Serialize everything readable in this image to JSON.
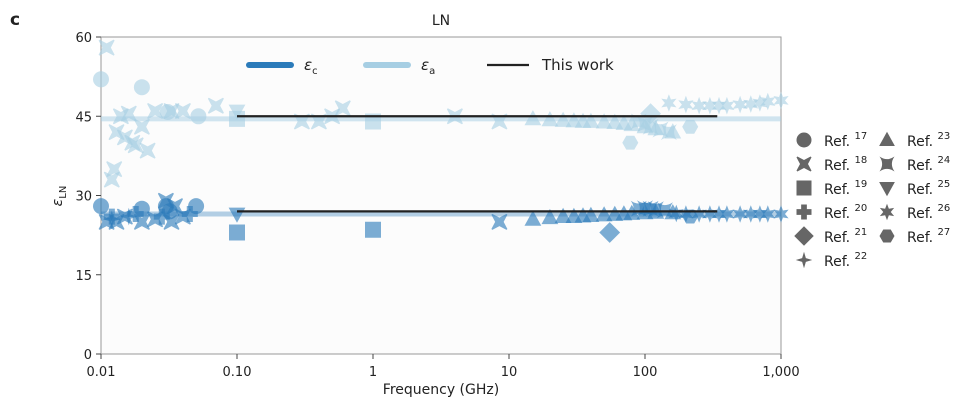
{
  "panel_label": "c",
  "chart_data": {
    "type": "scatter",
    "title": "LN",
    "xlabel": "Frequency (GHz)",
    "ylabel": "ε",
    "ylabel_sub": "LN",
    "xscale": "log",
    "xlim": [
      0.01,
      1000
    ],
    "ylim": [
      0,
      60
    ],
    "xticks": [
      {
        "v": 0.01,
        "label": "0.01"
      },
      {
        "v": 0.1,
        "label": "0.10"
      },
      {
        "v": 1,
        "label": "1"
      },
      {
        "v": 10,
        "label": "10"
      },
      {
        "v": 100,
        "label": "100"
      },
      {
        "v": 1000,
        "label": "1,000"
      }
    ],
    "yticks": [
      0,
      15,
      30,
      45,
      60
    ],
    "grid": false,
    "colors": {
      "eps_c": "#2b7bba",
      "eps_a": "#a6cee3",
      "this_work": "#222222",
      "legend_marker": "#666666"
    },
    "series_legend": [
      {
        "key": "eps_c",
        "symbol": "ε",
        "sub": "c"
      },
      {
        "key": "eps_a",
        "symbol": "ε",
        "sub": "a"
      },
      {
        "key": "this_work",
        "label": "This work"
      }
    ],
    "this_work": {
      "xrange": [
        0.1,
        340
      ],
      "eps_c": 27,
      "eps_a": 45
    },
    "bands": {
      "eps_c": 26.5,
      "eps_a": 44.5
    },
    "refs": [
      {
        "ref": "17",
        "marker": "circle",
        "c": [
          [
            0.01,
            28
          ],
          [
            0.02,
            27.5
          ],
          [
            0.03,
            28
          ],
          [
            0.032,
            27
          ],
          [
            0.05,
            28
          ]
        ],
        "a": [
          [
            0.01,
            52
          ],
          [
            0.02,
            50.5
          ],
          [
            0.031,
            45.8
          ],
          [
            0.052,
            45
          ]
        ]
      },
      {
        "ref": "18",
        "marker": "x",
        "c": [
          [
            0.011,
            25
          ],
          [
            0.013,
            25
          ],
          [
            0.015,
            26
          ],
          [
            0.02,
            25
          ],
          [
            0.025,
            25.5
          ],
          [
            0.03,
            29
          ],
          [
            0.033,
            25
          ],
          [
            0.035,
            28
          ],
          [
            0.04,
            26
          ],
          [
            8.5,
            25
          ]
        ],
        "a": [
          [
            0.011,
            58
          ],
          [
            0.012,
            33
          ],
          [
            0.0125,
            35
          ],
          [
            0.013,
            42
          ],
          [
            0.014,
            45
          ],
          [
            0.015,
            41
          ],
          [
            0.016,
            45.5
          ],
          [
            0.017,
            40
          ],
          [
            0.018,
            39.5
          ],
          [
            0.02,
            43
          ],
          [
            0.022,
            38.5
          ],
          [
            0.025,
            46
          ],
          [
            0.033,
            46
          ],
          [
            0.04,
            46
          ],
          [
            0.07,
            47
          ],
          [
            0.3,
            44
          ],
          [
            0.4,
            44
          ],
          [
            0.5,
            45
          ],
          [
            0.6,
            46.5
          ],
          [
            4,
            45
          ],
          [
            8.5,
            44
          ]
        ]
      },
      {
        "ref": "19",
        "marker": "square",
        "c": [
          [
            0.1,
            23
          ],
          [
            1,
            23.5
          ]
        ],
        "a": [
          [
            0.1,
            44.5
          ],
          [
            1,
            44
          ]
        ]
      },
      {
        "ref": "20",
        "marker": "plus",
        "c": [
          [
            0.012,
            26
          ],
          [
            0.018,
            26.5
          ],
          [
            0.028,
            26
          ],
          [
            0.045,
            26.5
          ]
        ],
        "a": []
      },
      {
        "ref": "21",
        "marker": "diamond",
        "c": [
          [
            55,
            23
          ]
        ],
        "a": [
          [
            110,
            45.5
          ]
        ]
      },
      {
        "ref": "22",
        "marker": "star4",
        "c": [
          [
            0.012,
            25.5
          ],
          [
            0.016,
            26
          ]
        ],
        "a": []
      },
      {
        "ref": "23",
        "marker": "triangle",
        "c": [
          [
            15,
            25.5
          ],
          [
            20,
            25.8
          ],
          [
            25,
            26
          ],
          [
            30,
            26
          ],
          [
            35,
            26.1
          ],
          [
            40,
            26.2
          ],
          [
            50,
            26.3
          ],
          [
            60,
            26.4
          ],
          [
            70,
            26.5
          ],
          [
            80,
            26.6
          ],
          [
            100,
            26.7
          ],
          [
            120,
            26.8
          ],
          [
            160,
            26.7
          ]
        ],
        "a": [
          [
            15,
            44.5
          ],
          [
            20,
            44.3
          ],
          [
            25,
            44.2
          ],
          [
            30,
            44.1
          ],
          [
            35,
            44
          ],
          [
            40,
            44
          ],
          [
            50,
            43.9
          ],
          [
            60,
            43.8
          ],
          [
            70,
            43.6
          ],
          [
            80,
            43.4
          ],
          [
            100,
            43
          ],
          [
            120,
            42.6
          ],
          [
            160,
            42
          ]
        ]
      },
      {
        "ref": "24",
        "marker": "bowtie",
        "c": [
          [
            90,
            27.5
          ],
          [
            100,
            27.6
          ],
          [
            110,
            27.5
          ],
          [
            120,
            27.4
          ],
          [
            140,
            27.2
          ]
        ],
        "a": [
          [
            90,
            44
          ],
          [
            100,
            43.5
          ],
          [
            110,
            43
          ],
          [
            130,
            42.5
          ],
          [
            150,
            42
          ]
        ]
      },
      {
        "ref": "25",
        "marker": "triangle-down",
        "c": [
          [
            0.1,
            26.5
          ]
        ],
        "a": [
          [
            0.1,
            46
          ]
        ]
      },
      {
        "ref": "26",
        "marker": "star",
        "c": [
          [
            170,
            26.6
          ],
          [
            200,
            26.5
          ],
          [
            250,
            26.5
          ],
          [
            300,
            26.5
          ],
          [
            350,
            26.5
          ],
          [
            400,
            26.5
          ],
          [
            500,
            26.5
          ],
          [
            600,
            26.5
          ],
          [
            700,
            26.5
          ],
          [
            800,
            26.5
          ],
          [
            1000,
            26.5
          ]
        ],
        "a": [
          [
            150,
            47.5
          ],
          [
            200,
            47.2
          ],
          [
            250,
            47
          ],
          [
            300,
            47
          ],
          [
            350,
            47
          ],
          [
            400,
            47
          ],
          [
            500,
            47.2
          ],
          [
            600,
            47.3
          ],
          [
            700,
            47.5
          ],
          [
            800,
            47.8
          ],
          [
            1000,
            48
          ]
        ]
      },
      {
        "ref": "27",
        "marker": "hexagon",
        "c": [
          [
            215,
            26
          ]
        ],
        "a": [
          [
            78,
            40
          ],
          [
            215,
            43
          ]
        ]
      }
    ],
    "legend_prefix": "Ref."
  }
}
